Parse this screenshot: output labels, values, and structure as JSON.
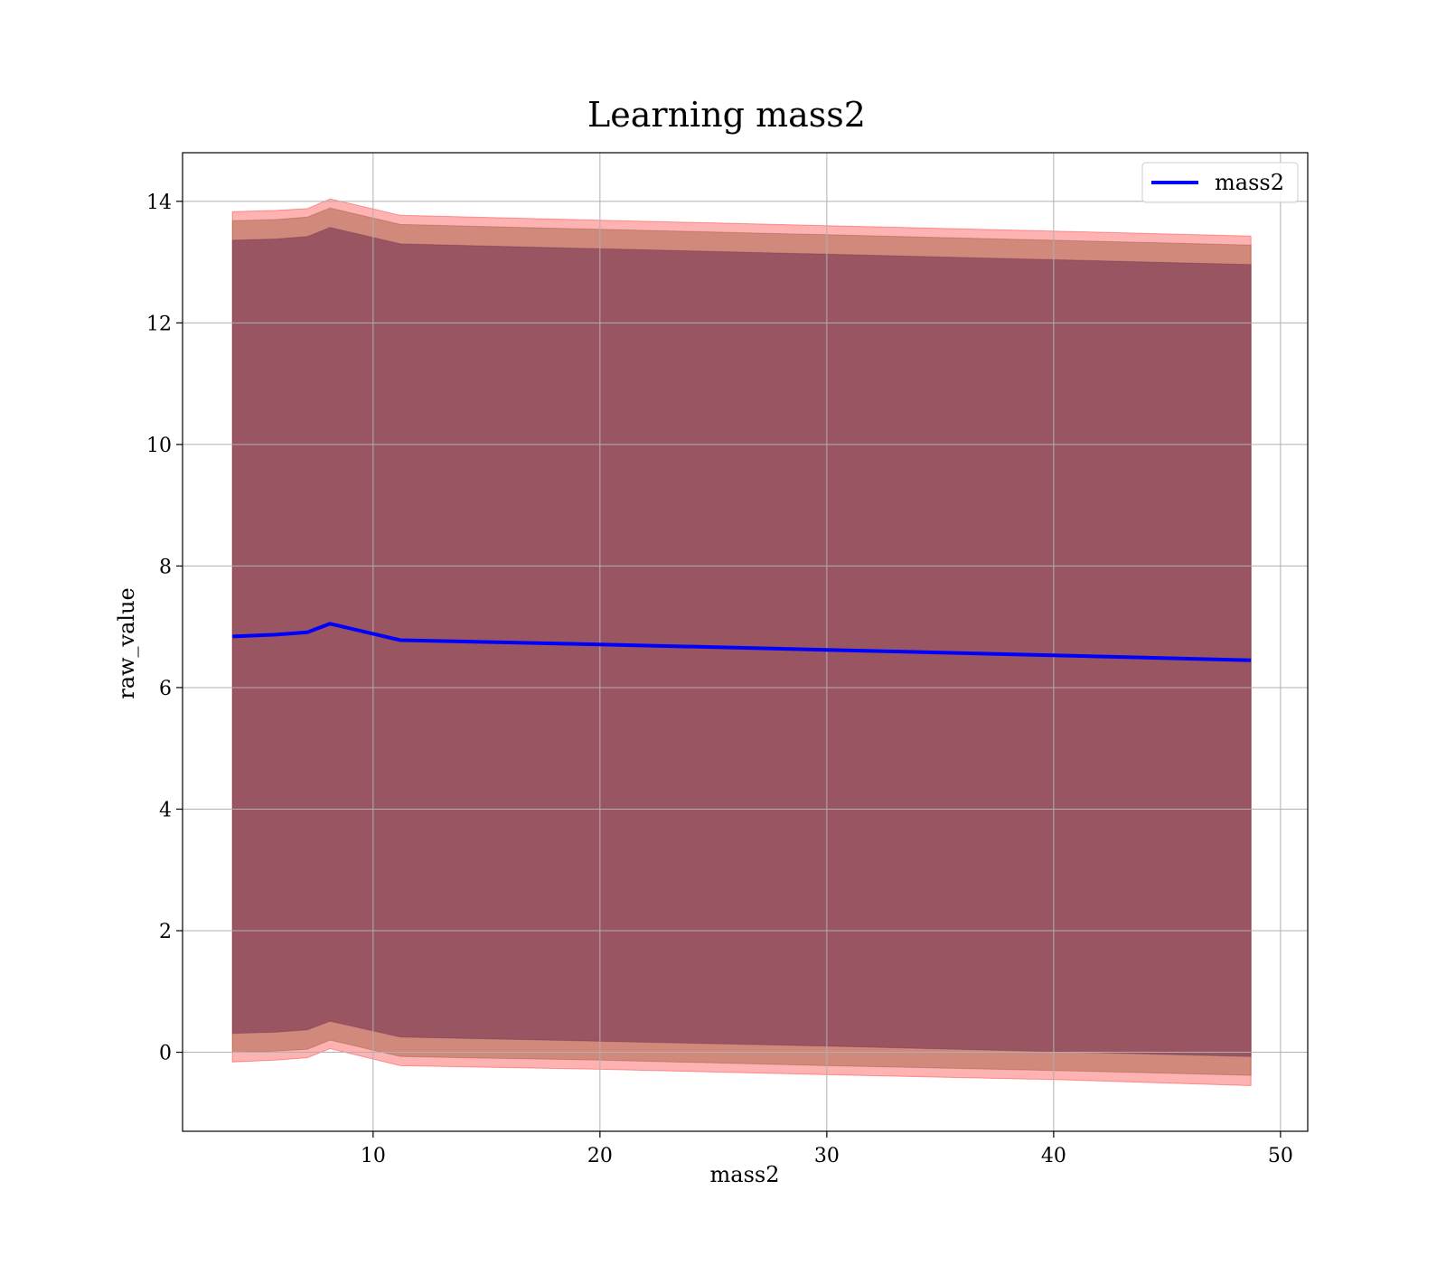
{
  "chart_data": {
    "type": "line",
    "title": "Learning mass2",
    "xlabel": "mass2",
    "ylabel": "raw_value",
    "xlim": [
      1.6,
      51.2
    ],
    "ylim": [
      -1.3,
      14.8
    ],
    "xticks": [
      10,
      20,
      30,
      40,
      50
    ],
    "yticks": [
      0,
      2,
      4,
      6,
      8,
      10,
      12,
      14
    ],
    "grid": true,
    "legend_position": "upper-right",
    "x": [
      3.8,
      5.7,
      7.1,
      8.1,
      11.2,
      20.0,
      30.0,
      40.0,
      48.7
    ],
    "series": [
      {
        "name": "mass2",
        "color": "#0000ff",
        "values": [
          6.84,
          6.87,
          6.91,
          7.05,
          6.78,
          6.71,
          6.62,
          6.53,
          6.45
        ]
      }
    ],
    "bands": [
      {
        "color": "#ff0000",
        "opacity": 0.3,
        "upper": [
          13.83,
          13.85,
          13.88,
          14.04,
          13.77,
          13.69,
          13.6,
          13.51,
          13.43
        ],
        "lower": [
          -0.16,
          -0.13,
          -0.09,
          0.06,
          -0.22,
          -0.28,
          -0.37,
          -0.45,
          -0.55
        ]
      },
      {
        "color": "#8b4a2b",
        "opacity": 0.4,
        "upper": [
          13.68,
          13.7,
          13.74,
          13.89,
          13.62,
          13.54,
          13.45,
          13.36,
          13.28
        ],
        "lower": [
          0.0,
          0.02,
          0.05,
          0.2,
          -0.07,
          -0.13,
          -0.22,
          -0.3,
          -0.38
        ]
      },
      {
        "color": "#6b2a4a",
        "opacity": 0.55,
        "upper": [
          13.36,
          13.38,
          13.42,
          13.57,
          13.3,
          13.22,
          13.13,
          13.04,
          12.96
        ],
        "lower": [
          0.31,
          0.33,
          0.37,
          0.51,
          0.25,
          0.18,
          0.1,
          0.01,
          -0.07
        ]
      }
    ]
  }
}
